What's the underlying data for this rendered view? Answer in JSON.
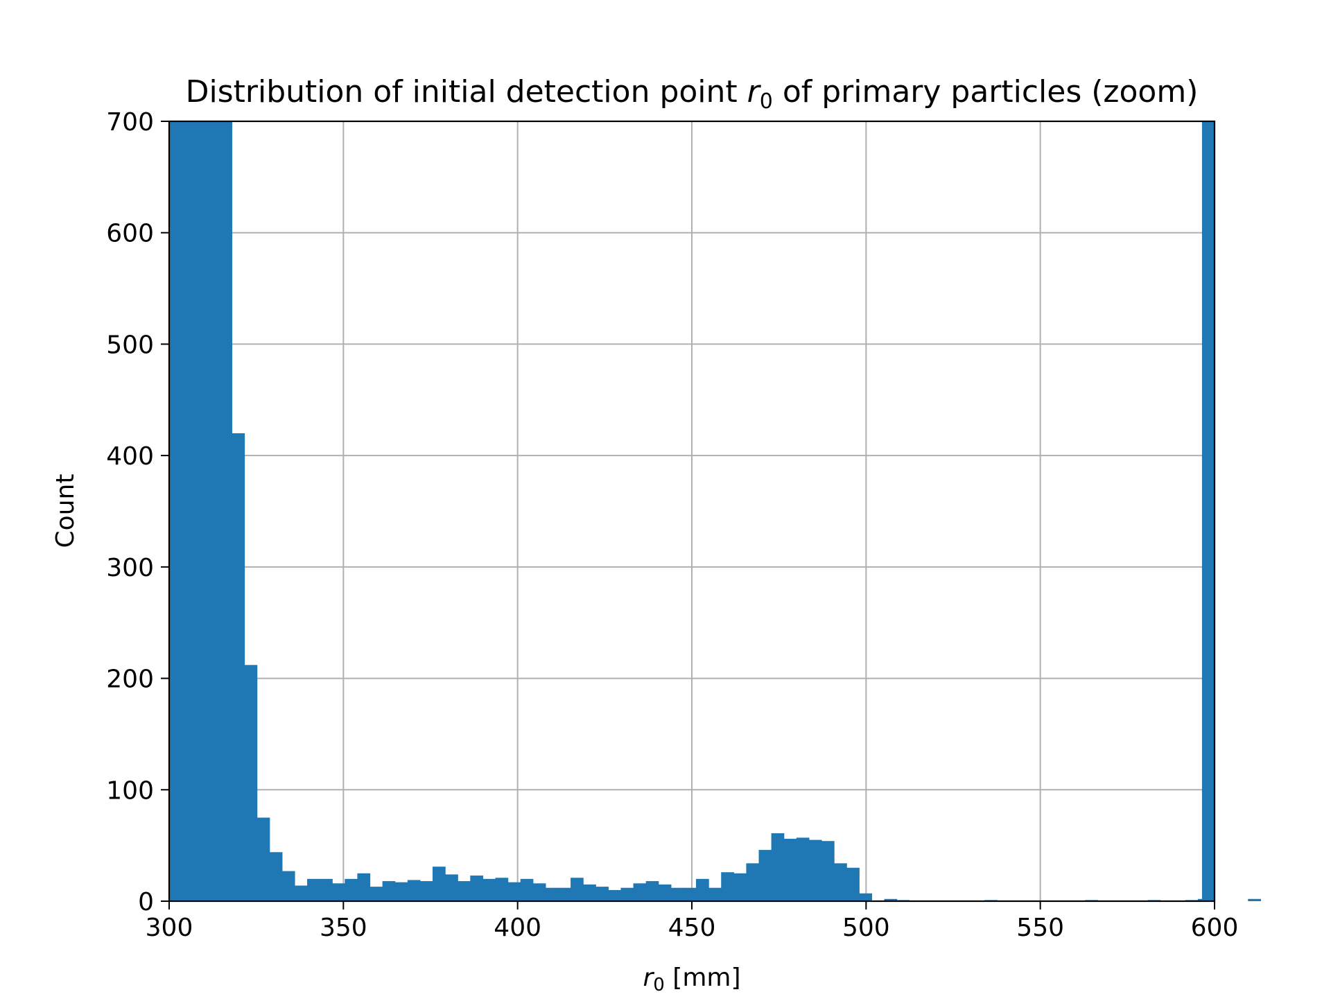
{
  "chart_data": {
    "type": "bar",
    "histogram": true,
    "title_prefix": "Distribution of initial detection point ",
    "title_var": "r",
    "title_sub": "0",
    "title_suffix": " of primary particles (zoom)",
    "xlabel_var": "r",
    "xlabel_sub": "0",
    "xlabel_unit": " [mm]",
    "ylabel": "Count",
    "xlim": [
      300,
      600
    ],
    "ylim": [
      0,
      700
    ],
    "xticks": [
      300,
      350,
      400,
      450,
      500,
      550,
      600
    ],
    "yticks": [
      0,
      100,
      200,
      300,
      400,
      500,
      600,
      700
    ],
    "grid": true,
    "bar_color": "#1f77b4",
    "bin_edges_start": 300,
    "bin_width": 3.6,
    "values": [
      700,
      700,
      700,
      700,
      700,
      420,
      212,
      75,
      44,
      27,
      14,
      20,
      20,
      16,
      20,
      25,
      13,
      18,
      17,
      19,
      18,
      31,
      24,
      18,
      23,
      20,
      21,
      17,
      20,
      16,
      12,
      12,
      21,
      15,
      13,
      10,
      12,
      16,
      18,
      15,
      12,
      12,
      20,
      12,
      26,
      25,
      34,
      46,
      61,
      56,
      57,
      55,
      54,
      34,
      30,
      7,
      0,
      2,
      1,
      0,
      0,
      0,
      0,
      0,
      0,
      1,
      0,
      0,
      0,
      0,
      0,
      0,
      0,
      1,
      0,
      0,
      0,
      0,
      1,
      0,
      0,
      1,
      2,
      0,
      0,
      0,
      2,
      0,
      0,
      0
    ],
    "right_edge_bar": {
      "x_start": 596.4,
      "x_end": 600,
      "value": 700
    }
  }
}
